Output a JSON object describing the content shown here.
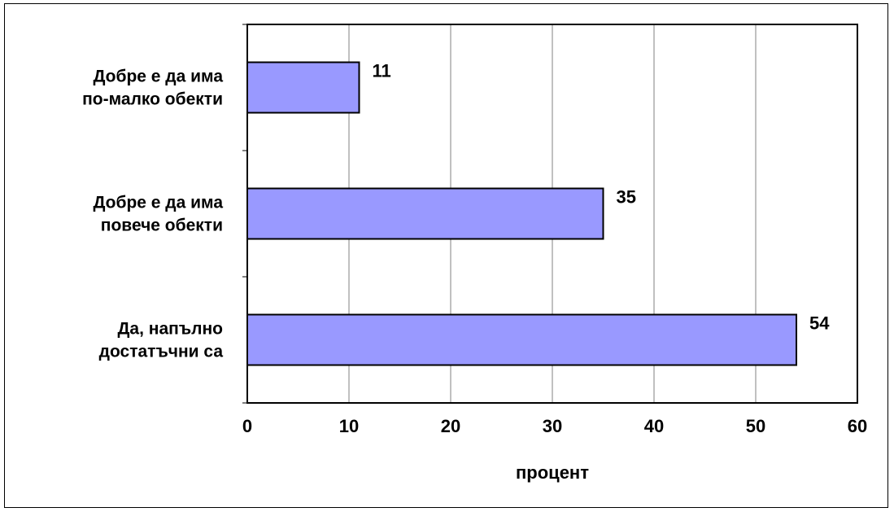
{
  "chart_data": {
    "type": "bar",
    "orientation": "horizontal",
    "categories": [
      [
        "Добре е да има",
        "по-малко обекти"
      ],
      [
        "Добре е да има",
        "повече обекти"
      ],
      [
        "Да, напълно",
        "достатъчни са"
      ]
    ],
    "values": [
      11,
      35,
      54
    ],
    "data_labels": [
      "11",
      "35",
      "54"
    ],
    "xlabel": "процент",
    "xlim": [
      0,
      60
    ],
    "xticks": [
      "0",
      "10",
      "20",
      "30",
      "40",
      "50",
      "60"
    ],
    "grid": "vertical",
    "legend": "none",
    "colors": {
      "bar": "#9999ff",
      "bar_border": "#000000",
      "gridline": "#808080"
    }
  }
}
